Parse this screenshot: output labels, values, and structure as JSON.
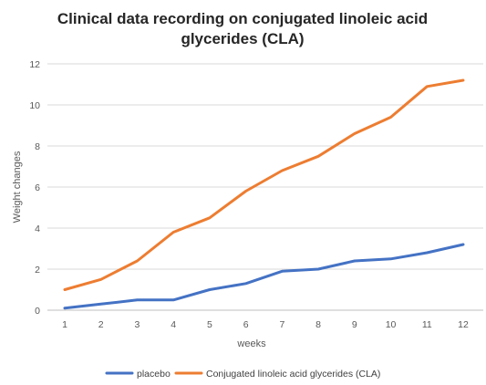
{
  "chart_data": {
    "type": "line",
    "title_lines": [
      "Clinical data recording on conjugated linoleic acid",
      "glycerides (CLA)"
    ],
    "xlabel": "weeks",
    "ylabel": "Weight changes",
    "categories": [
      "1",
      "2",
      "3",
      "4",
      "5",
      "6",
      "7",
      "8",
      "9",
      "10",
      "11",
      "12"
    ],
    "ylim": [
      0,
      12
    ],
    "yticks": [
      "0",
      "2",
      "4",
      "6",
      "8",
      "10",
      "12"
    ],
    "grid": true,
    "legend_position": "bottom",
    "series": [
      {
        "name": "placebo",
        "color": "#4472C4",
        "values": [
          0.1,
          0.3,
          0.5,
          0.5,
          1.0,
          1.3,
          1.9,
          2.0,
          2.4,
          2.5,
          2.8,
          3.2
        ]
      },
      {
        "name": "Conjugated linoleic acid glycerides (CLA)",
        "color": "#ED7D31",
        "values": [
          1.0,
          1.5,
          2.4,
          3.8,
          4.5,
          5.8,
          6.8,
          7.5,
          8.6,
          9.4,
          10.9,
          11.2
        ]
      }
    ]
  }
}
